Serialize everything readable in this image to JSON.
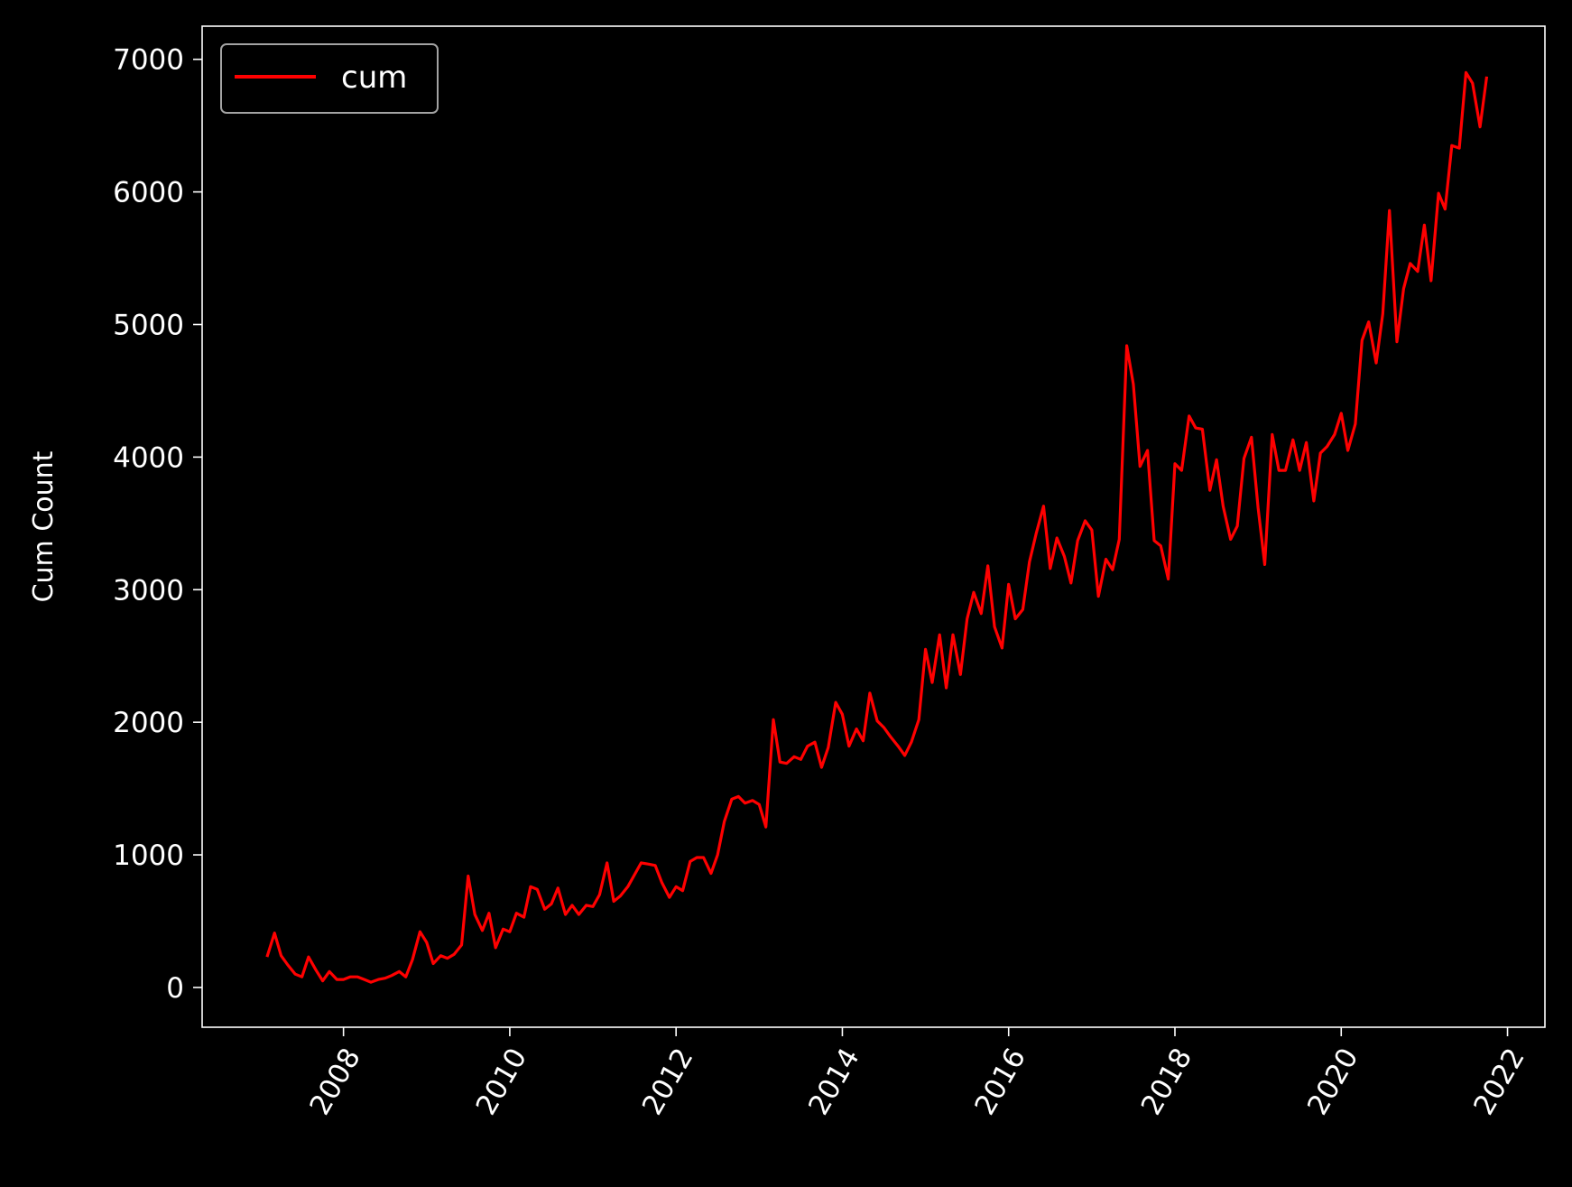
{
  "chart_data": {
    "type": "line",
    "title": "",
    "xlabel": "",
    "ylabel": "Cum Count",
    "xlim": [
      2006.3,
      2022.45
    ],
    "ylim": [
      -300,
      7250
    ],
    "x_ticks": [
      2008,
      2010,
      2012,
      2014,
      2016,
      2018,
      2020,
      2022
    ],
    "y_ticks": [
      0,
      1000,
      2000,
      3000,
      4000,
      5000,
      6000,
      7000
    ],
    "x_tick_labels": [
      "2008",
      "2010",
      "2012",
      "2014",
      "2016",
      "2018",
      "2020",
      "2022"
    ],
    "y_tick_labels": [
      "0",
      "1000",
      "2000",
      "3000",
      "4000",
      "5000",
      "6000",
      "7000"
    ],
    "grid": false,
    "legend_position": "top-left",
    "colors": {
      "background": "#000000",
      "foreground": "#ffffff",
      "line": "#ff0000"
    },
    "series": [
      {
        "name": "cum",
        "x": [
          2007.08,
          2007.17,
          2007.25,
          2007.33,
          2007.42,
          2007.5,
          2007.58,
          2007.67,
          2007.75,
          2007.83,
          2007.92,
          2008.0,
          2008.08,
          2008.17,
          2008.25,
          2008.33,
          2008.42,
          2008.5,
          2008.58,
          2008.67,
          2008.75,
          2008.83,
          2008.92,
          2009.0,
          2009.08,
          2009.17,
          2009.25,
          2009.33,
          2009.42,
          2009.5,
          2009.58,
          2009.67,
          2009.75,
          2009.83,
          2009.92,
          2010.0,
          2010.08,
          2010.17,
          2010.25,
          2010.33,
          2010.42,
          2010.5,
          2010.58,
          2010.67,
          2010.75,
          2010.83,
          2010.92,
          2011.0,
          2011.08,
          2011.17,
          2011.25,
          2011.33,
          2011.42,
          2011.5,
          2011.58,
          2011.67,
          2011.75,
          2011.83,
          2011.92,
          2012.0,
          2012.08,
          2012.17,
          2012.25,
          2012.33,
          2012.42,
          2012.5,
          2012.58,
          2012.67,
          2012.75,
          2012.83,
          2012.92,
          2013.0,
          2013.08,
          2013.17,
          2013.25,
          2013.33,
          2013.42,
          2013.5,
          2013.58,
          2013.67,
          2013.75,
          2013.83,
          2013.92,
          2014.0,
          2014.08,
          2014.17,
          2014.25,
          2014.33,
          2014.42,
          2014.5,
          2014.58,
          2014.67,
          2014.75,
          2014.83,
          2014.92,
          2015.0,
          2015.08,
          2015.17,
          2015.25,
          2015.33,
          2015.42,
          2015.5,
          2015.58,
          2015.67,
          2015.75,
          2015.83,
          2015.92,
          2016.0,
          2016.08,
          2016.17,
          2016.25,
          2016.33,
          2016.42,
          2016.5,
          2016.58,
          2016.67,
          2016.75,
          2016.83,
          2016.92,
          2017.0,
          2017.08,
          2017.17,
          2017.25,
          2017.33,
          2017.42,
          2017.5,
          2017.58,
          2017.67,
          2017.75,
          2017.83,
          2017.92,
          2018.0,
          2018.08,
          2018.17,
          2018.25,
          2018.33,
          2018.42,
          2018.5,
          2018.58,
          2018.67,
          2018.75,
          2018.83,
          2018.92,
          2019.0,
          2019.08,
          2019.17,
          2019.25,
          2019.33,
          2019.42,
          2019.5,
          2019.58,
          2019.67,
          2019.75,
          2019.83,
          2019.92,
          2020.0,
          2020.08,
          2020.17,
          2020.25,
          2020.33,
          2020.42,
          2020.5,
          2020.58,
          2020.67,
          2020.75,
          2020.83,
          2020.92,
          2021.0,
          2021.08,
          2021.17,
          2021.25,
          2021.33,
          2021.42,
          2021.5,
          2021.58,
          2021.67,
          2021.75
        ],
        "values": [
          230,
          410,
          240,
          170,
          100,
          80,
          230,
          130,
          50,
          120,
          60,
          60,
          80,
          80,
          60,
          40,
          60,
          70,
          90,
          120,
          80,
          210,
          420,
          340,
          180,
          240,
          220,
          250,
          320,
          840,
          550,
          430,
          560,
          300,
          440,
          420,
          560,
          530,
          760,
          740,
          590,
          630,
          750,
          550,
          620,
          550,
          620,
          610,
          700,
          940,
          650,
          690,
          760,
          850,
          940,
          930,
          920,
          790,
          680,
          760,
          730,
          950,
          980,
          980,
          860,
          1000,
          1250,
          1420,
          1440,
          1390,
          1410,
          1380,
          1210,
          2020,
          1700,
          1690,
          1740,
          1720,
          1820,
          1850,
          1660,
          1810,
          2150,
          2060,
          1820,
          1950,
          1860,
          2220,
          2010,
          1960,
          1890,
          1820,
          1750,
          1850,
          2020,
          2550,
          2300,
          2660,
          2260,
          2660,
          2360,
          2780,
          2980,
          2820,
          3180,
          2720,
          2560,
          3040,
          2780,
          2850,
          3210,
          3420,
          3630,
          3160,
          3390,
          3250,
          3050,
          3370,
          3520,
          3450,
          2950,
          3230,
          3150,
          3380,
          4840,
          4550,
          3930,
          4050,
          3370,
          3330,
          3080,
          3950,
          3900,
          4310,
          4220,
          4210,
          3750,
          3980,
          3630,
          3380,
          3480,
          3990,
          4150,
          3620,
          3190,
          4170,
          3900,
          3900,
          4130,
          3900,
          4110,
          3670,
          4030,
          4080,
          4170,
          4330,
          4050,
          4250,
          4880,
          5020,
          4710,
          5080,
          5860,
          4870,
          5270,
          5460,
          5400,
          5750,
          5330,
          5990,
          5870,
          6350,
          6330,
          6900,
          6820,
          6490,
          6870
        ]
      }
    ]
  }
}
